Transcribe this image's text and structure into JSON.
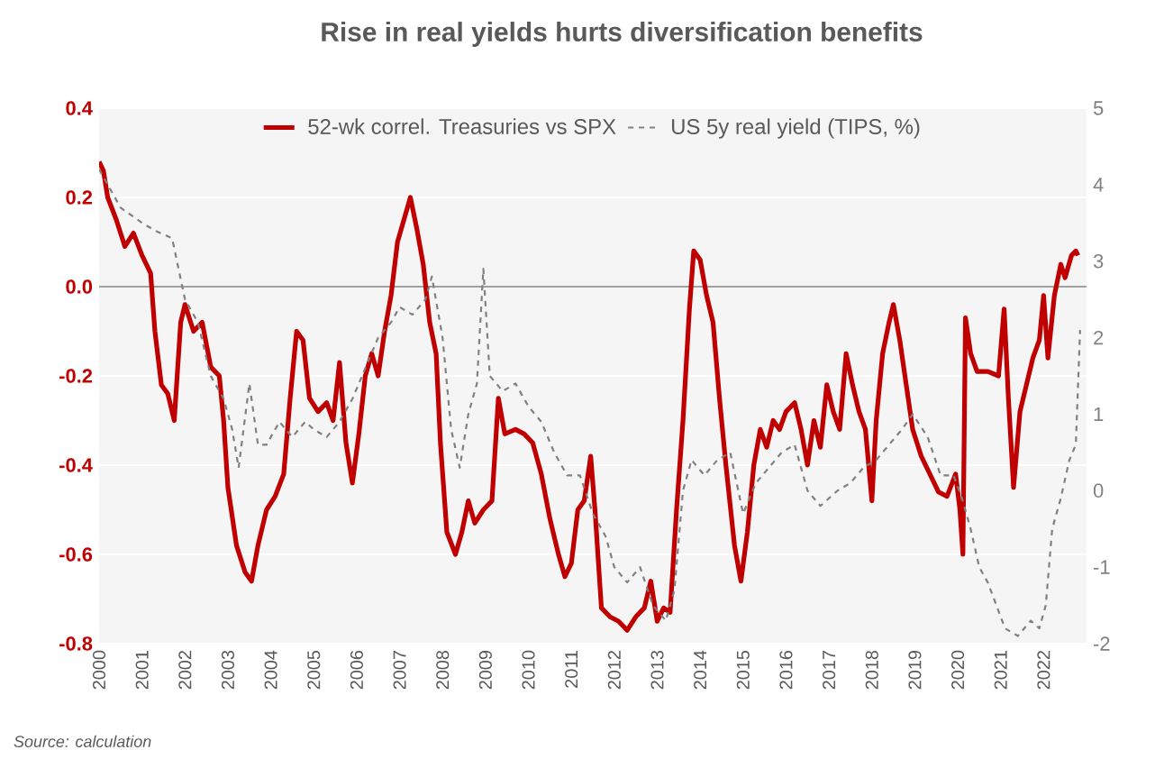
{
  "chart_data": {
    "type": "line",
    "title": "Rise in real yields hurts diversification benefits",
    "annotations": [
      "Source: calculation"
    ],
    "xlim": [
      2000,
      2023
    ],
    "xticks": [
      2000,
      2001,
      2002,
      2003,
      2004,
      2005,
      2006,
      2007,
      2008,
      2009,
      2010,
      2011,
      2012,
      2013,
      2014,
      2015,
      2016,
      2017,
      2018,
      2019,
      2020,
      2021,
      2022
    ],
    "ylim": [
      -0.8,
      0.4
    ],
    "yticks": [
      -0.8,
      -0.6,
      -0.4,
      -0.2,
      {
        "value": 0,
        "label": "0.0"
      },
      0.2,
      0.4
    ],
    "y2lim": [
      -2,
      5
    ],
    "y2ticks": [
      -2,
      -1,
      0,
      1,
      2,
      3,
      4,
      5
    ],
    "grid": "y",
    "legend": "top",
    "marker": "none",
    "ref_lines": [
      {
        "axis": "y",
        "value": 0,
        "color": "#808080"
      }
    ],
    "series": [
      {
        "name": "52-wk correl. Treasuries vs SPX",
        "color": "#c00000",
        "line_style": "solid",
        "x": [
          2000.0,
          2000.1,
          2000.2,
          2000.4,
          2000.6,
          2000.8,
          2001.0,
          2001.2,
          2001.3,
          2001.45,
          2001.6,
          2001.75,
          2001.9,
          2002.0,
          2002.2,
          2002.4,
          2002.6,
          2002.8,
          2002.9,
          2003.0,
          2003.2,
          2003.4,
          2003.55,
          2003.7,
          2003.9,
          2004.1,
          2004.3,
          2004.45,
          2004.6,
          2004.75,
          2004.9,
          2005.1,
          2005.3,
          2005.45,
          2005.6,
          2005.75,
          2005.9,
          2006.05,
          2006.2,
          2006.35,
          2006.5,
          2006.65,
          2006.8,
          2006.95,
          2007.1,
          2007.25,
          2007.4,
          2007.55,
          2007.7,
          2007.85,
          2007.95,
          2008.1,
          2008.3,
          2008.45,
          2008.6,
          2008.75,
          2008.95,
          2009.15,
          2009.3,
          2009.45,
          2009.7,
          2009.9,
          2010.1,
          2010.3,
          2010.5,
          2010.7,
          2010.85,
          2011.0,
          2011.15,
          2011.3,
          2011.45,
          2011.55,
          2011.7,
          2011.9,
          2012.1,
          2012.3,
          2012.5,
          2012.7,
          2012.85,
          2013.0,
          2013.15,
          2013.3,
          2013.45,
          2013.6,
          2013.75,
          2013.85,
          2014.0,
          2014.15,
          2014.3,
          2014.45,
          2014.6,
          2014.8,
          2014.95,
          2015.1,
          2015.25,
          2015.4,
          2015.55,
          2015.7,
          2015.85,
          2016.0,
          2016.2,
          2016.35,
          2016.5,
          2016.65,
          2016.8,
          2016.95,
          2017.1,
          2017.25,
          2017.4,
          2017.55,
          2017.7,
          2017.85,
          2018.0,
          2018.1,
          2018.25,
          2018.4,
          2018.5,
          2018.65,
          2018.8,
          2018.95,
          2019.15,
          2019.35,
          2019.55,
          2019.75,
          2019.95,
          2020.05,
          2020.12,
          2020.18,
          2020.3,
          2020.45,
          2020.7,
          2020.95,
          2021.08,
          2021.18,
          2021.3,
          2021.45,
          2021.6,
          2021.75,
          2021.9,
          2022.0,
          2022.1,
          2022.25,
          2022.4,
          2022.5,
          2022.65,
          2022.75,
          2022.8
        ],
        "values": [
          0.28,
          0.26,
          0.2,
          0.15,
          0.09,
          0.12,
          0.07,
          0.03,
          -0.1,
          -0.22,
          -0.24,
          -0.3,
          -0.08,
          -0.04,
          -0.1,
          -0.08,
          -0.18,
          -0.2,
          -0.3,
          -0.45,
          -0.58,
          -0.64,
          -0.66,
          -0.58,
          -0.5,
          -0.47,
          -0.42,
          -0.25,
          -0.1,
          -0.12,
          -0.25,
          -0.28,
          -0.26,
          -0.3,
          -0.17,
          -0.35,
          -0.44,
          -0.33,
          -0.2,
          -0.15,
          -0.2,
          -0.1,
          -0.02,
          0.1,
          0.15,
          0.2,
          0.13,
          0.05,
          -0.08,
          -0.15,
          -0.35,
          -0.55,
          -0.6,
          -0.55,
          -0.48,
          -0.53,
          -0.5,
          -0.48,
          -0.25,
          -0.33,
          -0.32,
          -0.33,
          -0.35,
          -0.42,
          -0.52,
          -0.6,
          -0.65,
          -0.62,
          -0.5,
          -0.48,
          -0.38,
          -0.5,
          -0.72,
          -0.74,
          -0.75,
          -0.77,
          -0.74,
          -0.72,
          -0.66,
          -0.75,
          -0.72,
          -0.73,
          -0.5,
          -0.3,
          -0.05,
          0.08,
          0.06,
          -0.02,
          -0.08,
          -0.25,
          -0.4,
          -0.58,
          -0.66,
          -0.55,
          -0.4,
          -0.32,
          -0.36,
          -0.3,
          -0.32,
          -0.28,
          -0.26,
          -0.32,
          -0.4,
          -0.3,
          -0.36,
          -0.22,
          -0.28,
          -0.32,
          -0.15,
          -0.22,
          -0.28,
          -0.32,
          -0.48,
          -0.3,
          -0.15,
          -0.08,
          -0.04,
          -0.12,
          -0.22,
          -0.32,
          -0.38,
          -0.42,
          -0.46,
          -0.47,
          -0.42,
          -0.5,
          -0.6,
          -0.07,
          -0.15,
          -0.19,
          -0.19,
          -0.2,
          -0.05,
          -0.25,
          -0.45,
          -0.28,
          -0.22,
          -0.16,
          -0.12,
          -0.02,
          -0.16,
          -0.02,
          0.05,
          0.02,
          0.07,
          0.08,
          0.07
        ]
      },
      {
        "name": "US 5y real yield (TIPS, %)",
        "color": "#808080",
        "line_style": "dashed",
        "axis": "y2",
        "x": [
          2000.0,
          2000.5,
          2001.0,
          2001.3,
          2001.7,
          2002.0,
          2002.3,
          2002.6,
          2002.9,
          2003.1,
          2003.25,
          2003.5,
          2003.7,
          2003.9,
          2004.2,
          2004.5,
          2004.8,
          2005.0,
          2005.3,
          2005.6,
          2005.9,
          2006.2,
          2006.5,
          2006.8,
          2007.0,
          2007.3,
          2007.6,
          2007.75,
          2008.0,
          2008.2,
          2008.4,
          2008.6,
          2008.8,
          2008.95,
          2009.1,
          2009.4,
          2009.7,
          2010.0,
          2010.3,
          2010.6,
          2010.9,
          2011.2,
          2011.5,
          2011.8,
          2012.0,
          2012.3,
          2012.6,
          2012.9,
          2013.2,
          2013.4,
          2013.6,
          2013.8,
          2014.1,
          2014.4,
          2014.7,
          2015.0,
          2015.3,
          2015.6,
          2015.9,
          2016.2,
          2016.5,
          2016.8,
          2017.2,
          2017.5,
          2017.8,
          2018.1,
          2018.4,
          2018.7,
          2018.95,
          2019.3,
          2019.6,
          2019.9,
          2020.1,
          2020.3,
          2020.5,
          2020.7,
          2020.9,
          2021.1,
          2021.4,
          2021.7,
          2021.9,
          2022.05,
          2022.2,
          2022.4,
          2022.6,
          2022.75,
          2022.85
        ],
        "values": [
          4.2,
          3.7,
          3.5,
          3.4,
          3.3,
          2.5,
          2.2,
          1.5,
          1.2,
          0.8,
          0.3,
          1.4,
          0.6,
          0.6,
          0.9,
          0.7,
          0.9,
          0.8,
          0.7,
          0.9,
          1.2,
          1.6,
          2.0,
          2.2,
          2.4,
          2.3,
          2.5,
          2.8,
          2.0,
          0.8,
          0.3,
          1.0,
          1.4,
          2.9,
          1.5,
          1.3,
          1.4,
          1.1,
          0.9,
          0.5,
          0.2,
          0.2,
          -0.3,
          -0.6,
          -1.0,
          -1.2,
          -1.0,
          -1.5,
          -1.7,
          -1.3,
          0.0,
          0.4,
          0.2,
          0.4,
          0.5,
          -0.3,
          0.1,
          0.3,
          0.5,
          0.6,
          0.0,
          -0.2,
          0.0,
          0.1,
          0.3,
          0.4,
          0.6,
          0.8,
          1.0,
          0.7,
          0.2,
          0.2,
          -0.1,
          -0.5,
          -1.0,
          -1.2,
          -1.5,
          -1.8,
          -1.9,
          -1.7,
          -1.8,
          -1.5,
          -0.5,
          -0.1,
          0.4,
          0.6,
          2.1
        ]
      }
    ]
  }
}
